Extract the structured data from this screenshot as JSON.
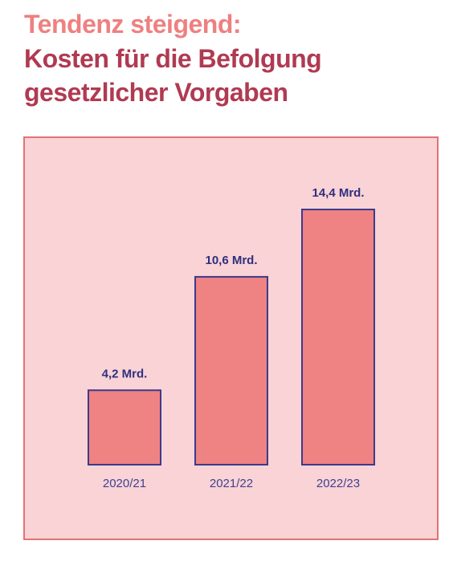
{
  "header": {
    "kicker": "Tendenz steigend:",
    "headline_line1": "Kosten für die Befolgung",
    "headline_line2": "gesetzlicher Vorgaben"
  },
  "colors": {
    "kicker": "#ef8080",
    "headline": "#b03a52",
    "panel_background": "#f9d3d5",
    "panel_border": "#e27377",
    "bar_fill": "#ef8282",
    "bar_outline": "#3b3a8c",
    "label_text": "#2f2f80"
  },
  "chart_data": {
    "type": "bar",
    "categories": [
      "2020/21",
      "2021/22",
      "2022/23"
    ],
    "values": [
      4.2,
      10.6,
      14.4
    ],
    "value_labels": [
      "4,2 Mrd.",
      "10,6 Mrd.",
      "14,4 Mrd."
    ],
    "title": "Kosten für die Befolgung gesetzlicher Vorgaben",
    "xlabel": "",
    "ylabel": "",
    "ylim": [
      0,
      14.4
    ],
    "grid": false,
    "legend": "none"
  }
}
